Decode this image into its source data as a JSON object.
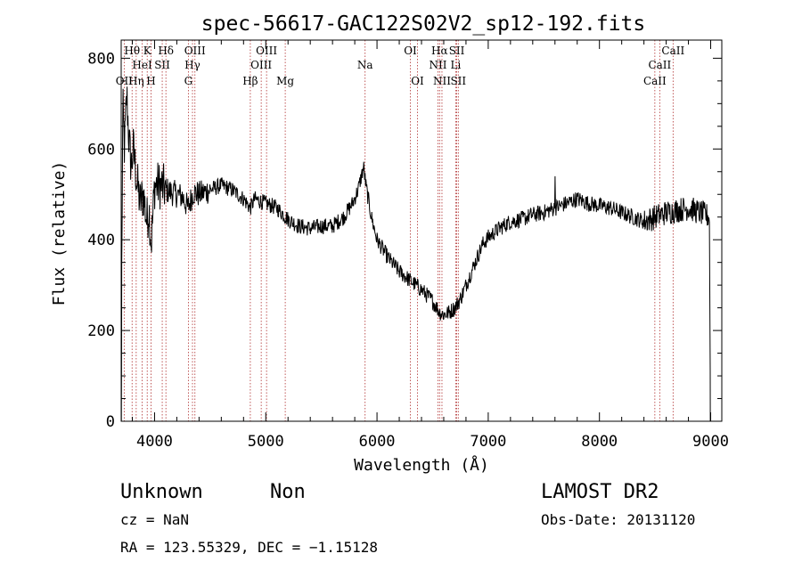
{
  "chart_data": {
    "type": "line",
    "title": "spec-56617-GAC122S02V2_sp12-192.fits",
    "xlabel": "Wavelength (Å)",
    "ylabel": "Flux (relative)",
    "xlim": [
      3700,
      9100
    ],
    "ylim": [
      0,
      840
    ],
    "xticks": [
      4000,
      5000,
      6000,
      7000,
      8000,
      9000
    ],
    "yticks": [
      0,
      200,
      400,
      600,
      800
    ],
    "grid": false,
    "spectrum_anchors": [
      [
        3705,
        330
      ],
      [
        3715,
        690
      ],
      [
        3730,
        600
      ],
      [
        3750,
        720
      ],
      [
        3770,
        620
      ],
      [
        3790,
        560
      ],
      [
        3810,
        600
      ],
      [
        3840,
        530
      ],
      [
        3870,
        480
      ],
      [
        3900,
        500
      ],
      [
        3930,
        440
      ],
      [
        3950,
        470
      ],
      [
        3970,
        390
      ],
      [
        4000,
        520
      ],
      [
        4050,
        520
      ],
      [
        4100,
        510
      ],
      [
        4150,
        505
      ],
      [
        4200,
        500
      ],
      [
        4250,
        495
      ],
      [
        4300,
        470
      ],
      [
        4350,
        505
      ],
      [
        4400,
        500
      ],
      [
        4500,
        510
      ],
      [
        4600,
        520
      ],
      [
        4700,
        510
      ],
      [
        4800,
        490
      ],
      [
        4861,
        470
      ],
      [
        4900,
        490
      ],
      [
        5000,
        480
      ],
      [
        5100,
        470
      ],
      [
        5200,
        445
      ],
      [
        5300,
        430
      ],
      [
        5400,
        425
      ],
      [
        5500,
        430
      ],
      [
        5600,
        430
      ],
      [
        5700,
        450
      ],
      [
        5780,
        480
      ],
      [
        5830,
        510
      ],
      [
        5880,
        560
      ],
      [
        5900,
        520
      ],
      [
        5950,
        450
      ],
      [
        6000,
        400
      ],
      [
        6100,
        360
      ],
      [
        6200,
        330
      ],
      [
        6300,
        310
      ],
      [
        6400,
        290
      ],
      [
        6500,
        265
      ],
      [
        6563,
        240
      ],
      [
        6600,
        235
      ],
      [
        6650,
        240
      ],
      [
        6700,
        250
      ],
      [
        6750,
        270
      ],
      [
        6800,
        300
      ],
      [
        6850,
        330
      ],
      [
        6900,
        360
      ],
      [
        6950,
        390
      ],
      [
        7000,
        405
      ],
      [
        7100,
        425
      ],
      [
        7200,
        440
      ],
      [
        7300,
        445
      ],
      [
        7400,
        455
      ],
      [
        7500,
        460
      ],
      [
        7600,
        470
      ],
      [
        7700,
        480
      ],
      [
        7800,
        490
      ],
      [
        7900,
        480
      ],
      [
        8000,
        475
      ],
      [
        8100,
        470
      ],
      [
        8200,
        460
      ],
      [
        8300,
        450
      ],
      [
        8400,
        440
      ],
      [
        8500,
        450
      ],
      [
        8600,
        460
      ],
      [
        8700,
        465
      ],
      [
        8800,
        470
      ],
      [
        8900,
        460
      ],
      [
        8950,
        455
      ],
      [
        8990,
        450
      ]
    ],
    "spikes": [
      [
        3702,
        0
      ],
      [
        3703,
        120
      ],
      [
        7600,
        540
      ],
      [
        8996,
        110
      ],
      [
        8997,
        0
      ]
    ],
    "lines_top": [
      {
        "label": "OII",
        "x": 3727,
        "row": 2
      },
      {
        "label": "Hθ",
        "x": 3798,
        "row": 0
      },
      {
        "label": "HeI",
        "x": 3889,
        "row": 1
      },
      {
        "label": "Hη",
        "x": 3835,
        "row": 2
      },
      {
        "label": "K",
        "x": 3934,
        "row": 0
      },
      {
        "label": "SII",
        "x": 4069,
        "row": 1
      },
      {
        "label": "H",
        "x": 3968,
        "row": 2
      },
      {
        "label": "Hδ",
        "x": 4102,
        "row": 0
      },
      {
        "label": "OIII",
        "x": 4363,
        "row": 0
      },
      {
        "label": "Hγ",
        "x": 4341,
        "row": 1
      },
      {
        "label": "G",
        "x": 4304,
        "row": 2
      },
      {
        "label": "Hβ",
        "x": 4861,
        "row": 2
      },
      {
        "label": "OIII",
        "x": 5007,
        "row": 0
      },
      {
        "label": "OIII",
        "x": 4959,
        "row": 1
      },
      {
        "label": "Mg",
        "x": 5175,
        "row": 2
      },
      {
        "label": "Na",
        "x": 5893,
        "row": 1
      },
      {
        "label": "OI",
        "x": 6300,
        "row": 0
      },
      {
        "label": "OI",
        "x": 6364,
        "row": 2
      },
      {
        "label": "Hα",
        "x": 6563,
        "row": 0
      },
      {
        "label": "NII",
        "x": 6548,
        "row": 1
      },
      {
        "label": "NII",
        "x": 6584,
        "row": 2
      },
      {
        "label": "SII",
        "x": 6717,
        "row": 0
      },
      {
        "label": "Li",
        "x": 6708,
        "row": 1
      },
      {
        "label": "SII",
        "x": 6731,
        "row": 2
      },
      {
        "label": "CaII",
        "x": 8662,
        "row": 0
      },
      {
        "label": "CaII",
        "x": 8542,
        "row": 1
      },
      {
        "label": "CaII",
        "x": 8498,
        "row": 2
      }
    ],
    "annotations": {
      "class": "Unknown",
      "subclass": "Non",
      "survey": "LAMOST DR2",
      "redshift": "cz = NaN",
      "obs_date": "Obs-Date: 20131120",
      "coords": "RA = 123.55329, DEC =  −1.15128"
    }
  }
}
